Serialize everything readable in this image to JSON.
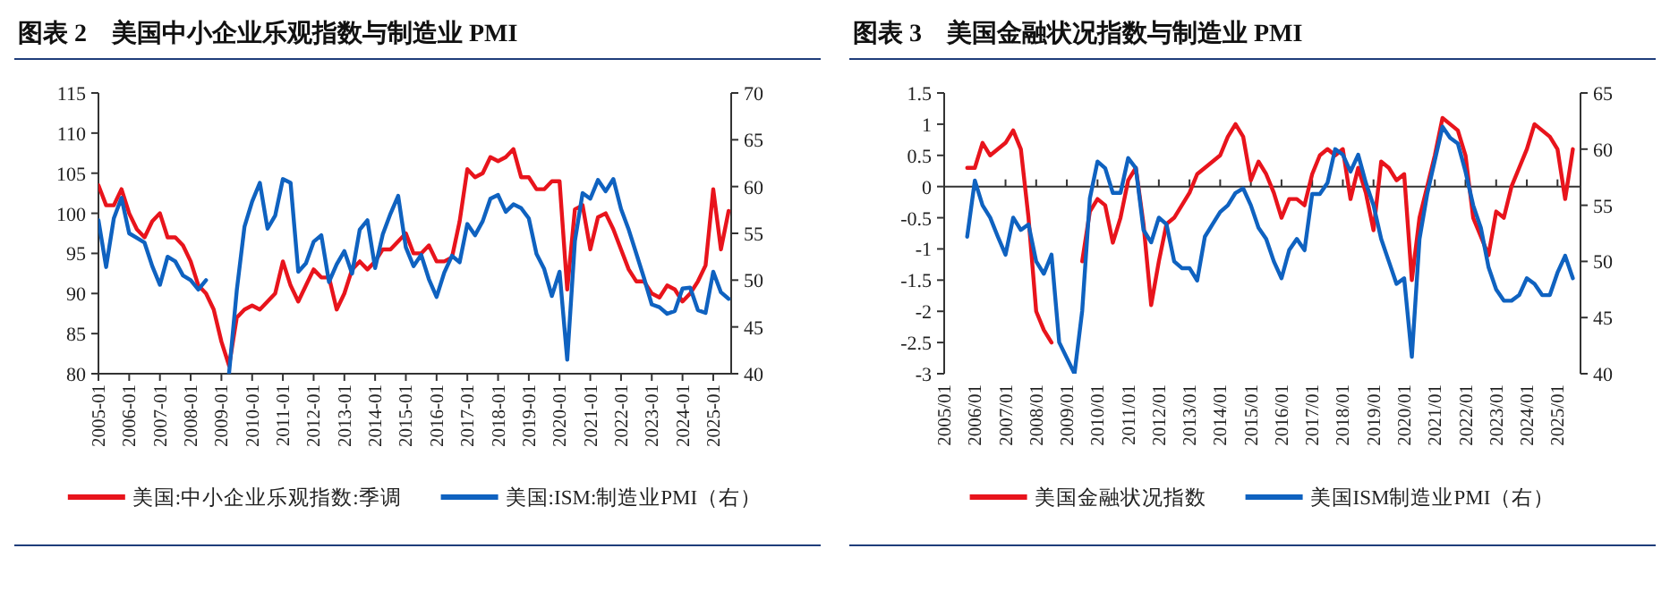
{
  "chart_data": [
    {
      "type": "line",
      "title": "图表 2　美国中小企业乐观指数与制造业 PMI",
      "x": [
        "2005-01",
        "2005-04",
        "2005-07",
        "2005-10",
        "2006-01",
        "2006-04",
        "2006-07",
        "2006-10",
        "2007-01",
        "2007-04",
        "2007-07",
        "2007-10",
        "2008-01",
        "2008-04",
        "2008-07",
        "2008-10",
        "2009-01",
        "2009-04",
        "2009-07",
        "2009-10",
        "2010-01",
        "2010-04",
        "2010-07",
        "2010-10",
        "2011-01",
        "2011-04",
        "2011-07",
        "2011-10",
        "2012-01",
        "2012-04",
        "2012-07",
        "2012-10",
        "2013-01",
        "2013-04",
        "2013-07",
        "2013-10",
        "2014-01",
        "2014-04",
        "2014-07",
        "2014-10",
        "2015-01",
        "2015-04",
        "2015-07",
        "2015-10",
        "2016-01",
        "2016-04",
        "2016-07",
        "2016-10",
        "2017-01",
        "2017-04",
        "2017-07",
        "2017-10",
        "2018-01",
        "2018-04",
        "2018-07",
        "2018-10",
        "2019-01",
        "2019-04",
        "2019-07",
        "2019-10",
        "2020-01",
        "2020-04",
        "2020-07",
        "2020-10",
        "2021-01",
        "2021-04",
        "2021-07",
        "2021-10",
        "2022-01",
        "2022-04",
        "2022-07",
        "2022-10",
        "2023-01",
        "2023-04",
        "2023-07",
        "2023-10",
        "2024-01",
        "2024-04",
        "2024-07",
        "2024-10",
        "2025-01",
        "2025-04",
        "2025-07"
      ],
      "xlim": [
        "2005-01",
        "2025-08"
      ],
      "xticks": [
        "2005-01",
        "2006-01",
        "2007-01",
        "2008-01",
        "2009-01",
        "2010-01",
        "2011-01",
        "2012-01",
        "2013-01",
        "2014-01",
        "2015-01",
        "2016-01",
        "2017-01",
        "2018-01",
        "2019-01",
        "2020-01",
        "2021-01",
        "2022-01",
        "2023-01",
        "2024-01",
        "2025-01"
      ],
      "ylim": [
        80,
        115
      ],
      "yticks": [
        80,
        85,
        90,
        95,
        100,
        105,
        110,
        115
      ],
      "y2lim": [
        40,
        70
      ],
      "y2ticks": [
        40,
        45,
        50,
        55,
        60,
        65,
        70
      ],
      "grid": false,
      "legend": "bottom",
      "series": [
        {
          "name": "美国:中小企业乐观指数:季调",
          "color": "#e8141c",
          "values": [
            103.5,
            101,
            101,
            103,
            100,
            98,
            97,
            99,
            100,
            97,
            97,
            96,
            94,
            91,
            90,
            88,
            84,
            81,
            87,
            88,
            88.5,
            88,
            89,
            90,
            94,
            91,
            89,
            91,
            93,
            92,
            92,
            88,
            90,
            93,
            94,
            93,
            94,
            95.5,
            95.5,
            96.5,
            97.5,
            95,
            95,
            96,
            94,
            94,
            94.5,
            99,
            105.5,
            104.5,
            105,
            107,
            106.5,
            107,
            108,
            104.5,
            104.5,
            103,
            103,
            104,
            104,
            90.5,
            100.5,
            101,
            95.5,
            99.5,
            100,
            98,
            95.5,
            93,
            91.5,
            91.5,
            90,
            89.5,
            91,
            90.5,
            89,
            90,
            91.5,
            93.5,
            103,
            95.5,
            100.3
          ]
        },
        {
          "name": "美国:ISM:制造业PMI（右）",
          "color": "#0f62c0",
          "axis": "y2",
          "values": [
            56.4,
            51.4,
            56.6,
            58.8,
            55,
            54.5,
            54,
            51.5,
            49.5,
            52.5,
            52,
            50.5,
            50,
            49,
            50,
            null,
            null,
            40.1,
            48.9,
            55.7,
            58.4,
            60.4,
            55.5,
            56.9,
            60.8,
            60.4,
            50.9,
            51.8,
            54.1,
            54.8,
            49.8,
            51.7,
            53.1,
            50.7,
            55.4,
            56.4,
            51.3,
            54.9,
            57.1,
            59,
            53.5,
            51.5,
            52.7,
            50.1,
            48.2,
            50.8,
            52.6,
            51.9,
            56,
            54.8,
            56.3,
            58.7,
            59.1,
            57.3,
            58.1,
            57.7,
            56.6,
            52.8,
            51.2,
            48.3,
            50.9,
            41.5,
            54.2,
            59.3,
            58.7,
            60.7,
            59.5,
            60.8,
            57.6,
            55.4,
            52.8,
            50.2,
            47.4,
            47.1,
            46.4,
            46.7,
            49.1,
            49.2,
            46.8,
            46.5,
            50.9,
            48.7,
            48
          ]
        }
      ]
    },
    {
      "type": "line",
      "title": "图表 3　美国金融状况指数与制造业 PMI",
      "x": [
        "2005-10",
        "2006-01",
        "2006-04",
        "2006-07",
        "2006-10",
        "2007-01",
        "2007-04",
        "2007-07",
        "2007-10",
        "2008-01",
        "2008-04",
        "2008-07",
        "2008-10",
        "2009-04",
        "2009-07",
        "2009-10",
        "2010-01",
        "2010-04",
        "2010-07",
        "2010-10",
        "2011-01",
        "2011-04",
        "2011-07",
        "2011-10",
        "2012-01",
        "2012-04",
        "2012-07",
        "2012-10",
        "2013-01",
        "2013-04",
        "2013-07",
        "2013-10",
        "2014-01",
        "2014-04",
        "2014-07",
        "2014-10",
        "2015-01",
        "2015-04",
        "2015-07",
        "2015-10",
        "2016-01",
        "2016-04",
        "2016-07",
        "2016-10",
        "2017-01",
        "2017-04",
        "2017-07",
        "2017-10",
        "2018-01",
        "2018-04",
        "2018-07",
        "2018-10",
        "2019-01",
        "2019-04",
        "2019-07",
        "2019-10",
        "2020-01",
        "2020-04",
        "2020-07",
        "2020-10",
        "2021-01",
        "2021-04",
        "2021-07",
        "2021-10",
        "2022-01",
        "2022-04",
        "2022-07",
        "2022-10",
        "2023-01",
        "2023-04",
        "2023-07",
        "2023-10",
        "2024-01",
        "2024-04",
        "2024-07",
        "2024-10",
        "2025-01",
        "2025-04",
        "2025-07"
      ],
      "xlim": [
        "2005-01",
        "2025-10"
      ],
      "xticks": [
        {
          "value": "2005-01",
          "label": "2005/01"
        },
        {
          "value": "2006-01",
          "label": "2006/01"
        },
        {
          "value": "2007-01",
          "label": "2007/01"
        },
        {
          "value": "2008-01",
          "label": "2008/01"
        },
        {
          "value": "2009-01",
          "label": "2009/01"
        },
        {
          "value": "2010-01",
          "label": "2010/01"
        },
        {
          "value": "2011-01",
          "label": "2011/01"
        },
        {
          "value": "2012-01",
          "label": "2012/01"
        },
        {
          "value": "2013-01",
          "label": "2013/01"
        },
        {
          "value": "2014-01",
          "label": "2014/01"
        },
        {
          "value": "2015-01",
          "label": "2015/01"
        },
        {
          "value": "2016-01",
          "label": "2016/01"
        },
        {
          "value": "2017-01",
          "label": "2017/01"
        },
        {
          "value": "2018-01",
          "label": "2018/01"
        },
        {
          "value": "2019-01",
          "label": "2019/01"
        },
        {
          "value": "2020-01",
          "label": "2020/01"
        },
        {
          "value": "2021-01",
          "label": "2021/01"
        },
        {
          "value": "2022-01",
          "label": "2022/01"
        },
        {
          "value": "2023-01",
          "label": "2023/01"
        },
        {
          "value": "2024-01",
          "label": "2024/01"
        },
        {
          "value": "2025-01",
          "label": "2025/01"
        }
      ],
      "ylim": [
        -3,
        1.5
      ],
      "yticks": [
        -3,
        -2.5,
        -2,
        -1.5,
        -1,
        -0.5,
        0,
        0.5,
        1,
        1.5
      ],
      "y2lim": [
        40,
        65
      ],
      "y2ticks": [
        40,
        45,
        50,
        55,
        60,
        65
      ],
      "grid": false,
      "legend": "bottom",
      "ref_lines": [
        {
          "axis": "y",
          "value": 0,
          "color": "#333333"
        }
      ],
      "series": [
        {
          "name": "美国金融状况指数",
          "color": "#e8141c",
          "values": [
            0.3,
            0.3,
            0.7,
            0.5,
            0.6,
            0.7,
            0.9,
            0.6,
            -0.5,
            -2,
            -2.3,
            -2.5,
            null,
            null,
            -1.2,
            -0.4,
            -0.2,
            -0.3,
            -0.9,
            -0.5,
            0.1,
            0.3,
            -0.6,
            -1.9,
            -1.2,
            -0.6,
            -0.5,
            -0.3,
            -0.1,
            0.2,
            0.3,
            0.4,
            0.5,
            0.8,
            1,
            0.8,
            0.1,
            0.4,
            0.2,
            -0.1,
            -0.5,
            -0.2,
            -0.2,
            -0.3,
            0.2,
            0.5,
            0.6,
            0.5,
            0.6,
            -0.2,
            0.3,
            -0.1,
            -0.7,
            0.4,
            0.3,
            0.1,
            0.2,
            -1.5,
            -0.5,
            0,
            0.5,
            1.1,
            1,
            0.9,
            0.5,
            -0.5,
            -0.8,
            -1.1,
            -0.4,
            -0.5,
            0,
            0.3,
            0.6,
            1,
            0.9,
            0.8,
            0.6,
            -0.2,
            0.6
          ]
        },
        {
          "name": "美国ISM制造业PMI（右）",
          "color": "#0f62c0",
          "axis": "y2",
          "values": [
            52.2,
            57.2,
            55,
            53.9,
            52.2,
            50.6,
            53.9,
            52.8,
            53.3,
            50,
            48.9,
            50.6,
            42.8,
            40,
            45.6,
            55.6,
            58.9,
            58.3,
            56.1,
            56.1,
            59.2,
            58.3,
            52.8,
            51.7,
            53.9,
            53.3,
            50,
            49.4,
            49.4,
            48.3,
            52.2,
            53.3,
            54.4,
            55,
            56.1,
            56.5,
            55,
            53,
            52,
            50,
            48.5,
            51,
            52,
            51,
            56,
            56,
            57,
            60,
            59.5,
            58,
            59.5,
            57,
            55,
            52,
            50,
            48,
            48.5,
            41.5,
            52,
            56,
            59,
            62,
            61,
            60.5,
            58,
            55,
            53,
            49.5,
            47.5,
            46.5,
            46.5,
            47,
            48.5,
            48,
            47,
            47,
            49,
            50.5,
            48.5
          ]
        }
      ]
    }
  ]
}
